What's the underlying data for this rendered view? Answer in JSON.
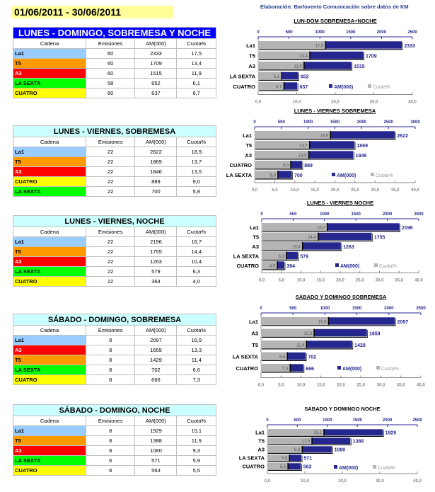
{
  "date_range": "01/06/2011 - 30/06/2011",
  "credit": "Elaboración: Barlovento Comunicación sobre datos de KM",
  "colors": {
    "La1": "#99ccff",
    "T5": "#ff9900",
    "A3": "#ff0000",
    "LA SEXTA": "#00ff00",
    "CUATRO": "#ffff00",
    "am_bar": "#26268f",
    "cuota_bar": "#b4b4b4"
  },
  "table_headers": [
    "Cadena",
    "Emisiones",
    "AM(000)",
    "Cuota%"
  ],
  "tables": [
    {
      "title": "LUNES - DOMINGO, SOBREMESA Y NOCHE",
      "rows": [
        [
          "La1",
          "60",
          "2333",
          "17,5"
        ],
        [
          "T5",
          "60",
          "1709",
          "13,4"
        ],
        [
          "A3",
          "60",
          "1515",
          "11,9"
        ],
        [
          "LA SEXTA",
          "58",
          "652",
          "6,1"
        ],
        [
          "CUATRO",
          "60",
          "637",
          "6,7"
        ]
      ]
    },
    {
      "title": "LUNES - VIERNES, SOBREMESA",
      "rows": [
        [
          "La1",
          "22",
          "2622",
          "18,9"
        ],
        [
          "T5",
          "22",
          "1869",
          "13,7"
        ],
        [
          "A3",
          "22",
          "1846",
          "13,5"
        ],
        [
          "CUATRO",
          "22",
          "889",
          "9,0"
        ],
        [
          "LA SEXTA",
          "22",
          "700",
          "5,8"
        ]
      ]
    },
    {
      "title": "LUNES - VIERNES, NOCHE",
      "rows": [
        [
          "La1",
          "22",
          "2196",
          "16,7"
        ],
        [
          "T5",
          "22",
          "1755",
          "14,4"
        ],
        [
          "A3",
          "22",
          "1263",
          "10,4"
        ],
        [
          "LA SEXTA",
          "22",
          "579",
          "6,3"
        ],
        [
          "CUATRO",
          "22",
          "364",
          "4,0"
        ]
      ]
    },
    {
      "title": "SÁBADO - DOMINGO, SOBREMESA",
      "rows": [
        [
          "La1",
          "8",
          "2097",
          "16,9"
        ],
        [
          "A3",
          "8",
          "1659",
          "13,3"
        ],
        [
          "T5",
          "8",
          "1429",
          "11,4"
        ],
        [
          "LA SEXTA",
          "8",
          "702",
          "6,6"
        ],
        [
          "CUATRO",
          "8",
          "666",
          "7,3"
        ]
      ]
    },
    {
      "title": "SÁBADO - DOMINGO, NOCHE",
      "rows": [
        [
          "La1",
          "8",
          "1929",
          "15,1"
        ],
        [
          "T5",
          "8",
          "1388",
          "11,9"
        ],
        [
          "A3",
          "8",
          "1080",
          "9,3"
        ],
        [
          "LA SEXTA",
          "6",
          "571",
          "5,9"
        ],
        [
          "CUATRO",
          "8",
          "563",
          "5,5"
        ]
      ]
    }
  ],
  "chart_data": [
    {
      "type": "bar",
      "title": "LUN-DOM SOBREMESA+NOCHE",
      "categories": [
        "La1",
        "T5",
        "A3",
        "LA SEXTA",
        "CUATRO"
      ],
      "series": [
        {
          "name": "AM(000)",
          "values": [
            2333,
            1709,
            1515,
            652,
            637
          ]
        },
        {
          "name": "Cuota%",
          "values": [
            17.5,
            13.4,
            11.9,
            6.1,
            6.7
          ]
        }
      ],
      "top_axis": {
        "range": [
          0,
          2500
        ],
        "ticks": [
          "0",
          "500",
          "1000",
          "1500",
          "2000",
          "2500"
        ]
      },
      "bottom_axis": {
        "range": [
          0,
          40
        ],
        "ticks": [
          "0,0",
          "10,0",
          "20,0",
          "30,0",
          "40,0"
        ]
      },
      "legend": "bottom-right"
    },
    {
      "type": "bar",
      "title": "LUNES - VIERNES SOBREMESA",
      "categories": [
        "La1",
        "T5",
        "A3",
        "CUATRO",
        "LA SEXTA"
      ],
      "series": [
        {
          "name": "AM(000)",
          "values": [
            2622,
            1869,
            1846,
            889,
            700
          ]
        },
        {
          "name": "Cuota%",
          "values": [
            18.9,
            13.7,
            13.5,
            9.0,
            5.8
          ]
        }
      ],
      "top_axis": {
        "range": [
          0,
          3000
        ],
        "ticks": [
          "0",
          "500",
          "1000",
          "1500",
          "2000",
          "2500",
          "3000"
        ]
      },
      "bottom_axis": {
        "range": [
          0,
          40
        ],
        "ticks": [
          "0,0",
          "5,0",
          "10,0",
          "15,0",
          "20,0",
          "25,0",
          "30,0",
          "35,0",
          "40,0"
        ]
      },
      "legend": "bottom-right"
    },
    {
      "type": "bar",
      "title": "LUNES - VIERNES  NOCHE",
      "categories": [
        "La1",
        "T5",
        "A3",
        "LA SEXTA",
        "CUATRO"
      ],
      "series": [
        {
          "name": "AM(000)",
          "values": [
            2196,
            1755,
            1263,
            579,
            364
          ]
        },
        {
          "name": "Cuota%",
          "values": [
            16.7,
            14.4,
            10.4,
            6.3,
            4.0
          ]
        }
      ],
      "top_axis": {
        "range": [
          0,
          2500
        ],
        "ticks": [
          "0",
          "500",
          "1000",
          "1500",
          "2000",
          "2500"
        ]
      },
      "bottom_axis": {
        "range": [
          0,
          40
        ],
        "ticks": [
          "0,0",
          "5,0",
          "10,0",
          "15,0",
          "20,0",
          "25,0",
          "30,0",
          "35,0",
          "40,0"
        ]
      },
      "legend": "bottom-right"
    },
    {
      "type": "bar",
      "title": "SÁBADO Y DOMINGO SOBREMESA",
      "categories": [
        "La1",
        "A3",
        "T5",
        "LA SEXTA",
        "CUATRO"
      ],
      "series": [
        {
          "name": "AM(000)",
          "values": [
            2097,
            1659,
            1429,
            702,
            666
          ]
        },
        {
          "name": "Cuota%",
          "values": [
            16.9,
            13.3,
            11.4,
            6.6,
            7.3
          ]
        }
      ],
      "top_axis": {
        "range": [
          0,
          2500
        ],
        "ticks": [
          "0",
          "500",
          "1000",
          "1500",
          "2000",
          "2500"
        ]
      },
      "bottom_axis": {
        "range": [
          0,
          40
        ],
        "ticks": [
          "0,0",
          "5,0",
          "10,0",
          "15,0",
          "20,0",
          "25,0",
          "30,0",
          "35,0",
          "40,0"
        ]
      },
      "legend": "bottom-right"
    },
    {
      "type": "bar",
      "title": "SÁBADO Y DOMINGO  NOCHE",
      "categories": [
        "La1",
        "T5",
        "A3",
        "LA SEXTA",
        "CUATRO"
      ],
      "series": [
        {
          "name": "AM(000)",
          "values": [
            1929,
            1388,
            1080,
            571,
            563
          ]
        },
        {
          "name": "Cuota%",
          "values": [
            15.1,
            11.9,
            9.3,
            5.9,
            5.5
          ]
        }
      ],
      "top_axis": {
        "range": [
          0,
          2500
        ],
        "ticks": [
          "0",
          "500",
          "1000",
          "1500",
          "2000",
          "2500"
        ]
      },
      "bottom_axis": {
        "range": [
          0,
          40
        ],
        "ticks": [
          "0,0",
          "10,0",
          "20,0",
          "30,0",
          "40,0"
        ]
      },
      "legend": "bottom-right"
    }
  ]
}
